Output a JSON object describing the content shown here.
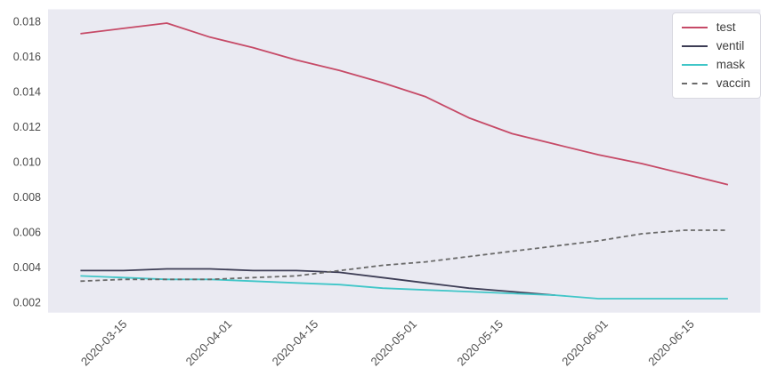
{
  "figure": {
    "background": "#ffffff",
    "plot_background": "#eaeaf2",
    "tick_color": "#4a4a4a"
  },
  "chart_data": {
    "type": "line",
    "title": "",
    "xlabel": "",
    "ylabel": "",
    "grid": false,
    "x_dates": [
      "2020-03-08",
      "2020-03-15",
      "2020-03-22",
      "2020-03-29",
      "2020-04-05",
      "2020-04-12",
      "2020-04-19",
      "2020-04-26",
      "2020-05-03",
      "2020-05-10",
      "2020-05-17",
      "2020-05-24",
      "2020-05-31",
      "2020-06-07",
      "2020-06-14",
      "2020-06-21"
    ],
    "series": [
      {
        "name": "test",
        "color": "#c64a67",
        "style": "solid",
        "values": [
          0.0173,
          0.0176,
          0.0179,
          0.0171,
          0.0165,
          0.0158,
          0.0152,
          0.0145,
          0.0137,
          0.0125,
          0.0116,
          0.011,
          0.0104,
          0.0099,
          0.0093,
          0.0087
        ]
      },
      {
        "name": "ventil",
        "color": "#3d3d55",
        "style": "solid",
        "values": [
          0.0038,
          0.0038,
          0.0039,
          0.0039,
          0.0038,
          0.0038,
          0.0037,
          0.0034,
          0.0031,
          0.0028,
          0.0026,
          0.0024,
          null,
          null,
          null,
          null
        ]
      },
      {
        "name": "mask",
        "color": "#40c6c8",
        "style": "solid",
        "values": [
          0.0035,
          0.0034,
          0.0033,
          0.0033,
          0.0032,
          0.0031,
          0.003,
          0.0028,
          0.0027,
          0.0026,
          0.0025,
          0.0024,
          0.0022,
          0.0022,
          0.0022,
          0.0022
        ]
      },
      {
        "name": "vaccin",
        "color": "#6a6a6a",
        "style": "dashed",
        "values": [
          0.0032,
          0.0033,
          0.0033,
          0.0033,
          0.0034,
          0.0035,
          0.0038,
          0.0041,
          0.0043,
          0.0046,
          0.0049,
          0.0052,
          0.0055,
          0.0059,
          0.0061,
          0.0061
        ]
      }
    ],
    "x_tick_labels": [
      "2020-03-15",
      "2020-04-01",
      "2020-04-15",
      "2020-05-01",
      "2020-05-15",
      "2020-06-01",
      "2020-06-15"
    ],
    "y_tick_labels": [
      "0.002",
      "0.004",
      "0.006",
      "0.008",
      "0.010",
      "0.012",
      "0.014",
      "0.016",
      "0.018"
    ],
    "y_ticks": [
      0.002,
      0.004,
      0.006,
      0.008,
      0.01,
      0.012,
      0.014,
      0.016,
      0.018
    ],
    "ylim": [
      0.001407,
      0.018685
    ],
    "xlim_days": [
      -5.25,
      110.25
    ],
    "legend": {
      "position": "upper right",
      "entries": [
        "test",
        "ventil",
        "mask",
        "vaccin"
      ]
    }
  }
}
